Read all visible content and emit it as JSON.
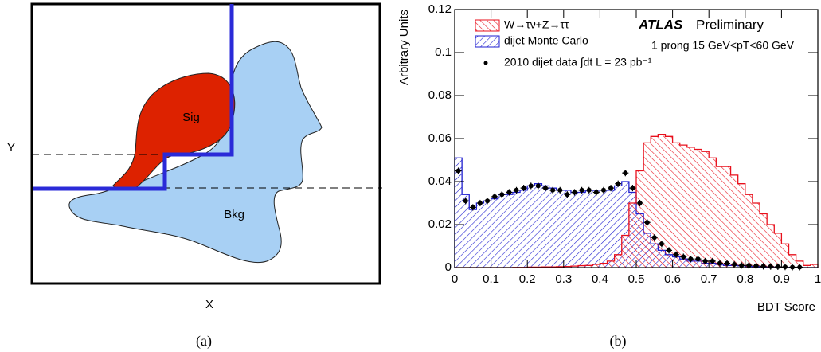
{
  "diagram": {
    "y_label": "Y",
    "x_label": "X",
    "signal_label": "Sig",
    "background_label": "Bkg",
    "caption": "(a)"
  },
  "chart_data": {
    "type": "histogram",
    "caption": "(b)",
    "x_label": "BDT Score",
    "y_label": "Arbitrary Units",
    "annotations": [
      "ATLAS",
      "Preliminary",
      "1 prong 15 GeV<pT<60 GeV"
    ],
    "xlim": [
      0,
      1
    ],
    "ylim": [
      0,
      0.12
    ],
    "xticks": [
      0,
      0.1,
      0.2,
      0.3,
      0.4,
      0.5,
      0.6,
      0.7,
      0.8,
      0.9,
      1
    ],
    "yticks": [
      0,
      0.02,
      0.04,
      0.06,
      0.08,
      0.1,
      0.12
    ],
    "bins": [
      0,
      0.02,
      0.04,
      0.06,
      0.08,
      0.1,
      0.12,
      0.14,
      0.16,
      0.18,
      0.2,
      0.22,
      0.24,
      0.26,
      0.28,
      0.3,
      0.32,
      0.34,
      0.36,
      0.38,
      0.4,
      0.42,
      0.44,
      0.46,
      0.48,
      0.5,
      0.52,
      0.54,
      0.56,
      0.58,
      0.6,
      0.62,
      0.64,
      0.66,
      0.68,
      0.7,
      0.72,
      0.74,
      0.76,
      0.78,
      0.8,
      0.82,
      0.84,
      0.86,
      0.88,
      0.9,
      0.92,
      0.94,
      0.96,
      0.98,
      1
    ],
    "series": [
      {
        "name": "dijet Monte Carlo",
        "color": "#1f1fd0",
        "values": [
          0.051,
          0.034,
          0.027,
          0.03,
          0.031,
          0.032,
          0.034,
          0.034,
          0.035,
          0.036,
          0.038,
          0.039,
          0.038,
          0.037,
          0.036,
          0.036,
          0.035,
          0.035,
          0.036,
          0.036,
          0.036,
          0.036,
          0.038,
          0.04,
          0.035,
          0.025,
          0.016,
          0.011,
          0.008,
          0.006,
          0.005,
          0.004,
          0.003,
          0.003,
          0.002,
          0.002,
          0.0015,
          0.001,
          0.001,
          0.0008,
          0.0005,
          0.0004,
          0.0003,
          0.0002,
          0.0002,
          0.0001,
          0.0001,
          0,
          0,
          0
        ]
      },
      {
        "name": "W→τν+Z→ττ",
        "color": "#e8101c",
        "values": [
          0,
          0,
          0,
          0,
          0,
          0,
          0,
          0,
          0.0001,
          0.0001,
          0.0002,
          0.0002,
          0.0003,
          0.0003,
          0.0004,
          0.0005,
          0.0007,
          0.0009,
          0.001,
          0.0015,
          0.002,
          0.003,
          0.006,
          0.015,
          0.03,
          0.045,
          0.058,
          0.061,
          0.062,
          0.061,
          0.058,
          0.057,
          0.056,
          0.055,
          0.054,
          0.051,
          0.047,
          0.047,
          0.043,
          0.039,
          0.034,
          0.03,
          0.025,
          0.02,
          0.016,
          0.011,
          0.006,
          0.003,
          0.001,
          0.0015
        ]
      }
    ],
    "points": {
      "name": "2010 dijet data ∫dt L = 23 pb⁻¹",
      "color": "#000000",
      "error": 0.0015,
      "x": [
        0.01,
        0.03,
        0.05,
        0.07,
        0.09,
        0.11,
        0.13,
        0.15,
        0.17,
        0.19,
        0.21,
        0.23,
        0.25,
        0.27,
        0.29,
        0.31,
        0.33,
        0.35,
        0.37,
        0.39,
        0.41,
        0.43,
        0.45,
        0.47,
        0.49,
        0.51,
        0.53,
        0.55,
        0.57,
        0.59,
        0.61,
        0.63,
        0.65,
        0.67,
        0.69,
        0.71,
        0.73,
        0.75,
        0.77,
        0.79,
        0.81,
        0.83,
        0.85,
        0.87,
        0.89,
        0.91,
        0.93,
        0.95
      ],
      "values": [
        0.045,
        0.031,
        0.028,
        0.03,
        0.031,
        0.033,
        0.034,
        0.035,
        0.036,
        0.037,
        0.038,
        0.038,
        0.037,
        0.036,
        0.036,
        0.034,
        0.035,
        0.036,
        0.036,
        0.035,
        0.036,
        0.037,
        0.039,
        0.044,
        0.037,
        0.03,
        0.021,
        0.014,
        0.011,
        0.008,
        0.006,
        0.005,
        0.004,
        0.004,
        0.003,
        0.003,
        0.002,
        0.002,
        0.0015,
        0.001,
        0.001,
        0.0008,
        0.0006,
        0.0005,
        0.0004,
        0.0003,
        0.0002,
        0.0002
      ]
    }
  }
}
